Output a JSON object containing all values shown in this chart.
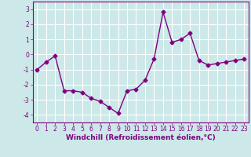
{
  "x": [
    0,
    1,
    2,
    3,
    4,
    5,
    6,
    7,
    8,
    9,
    10,
    11,
    12,
    13,
    14,
    15,
    16,
    17,
    18,
    19,
    20,
    21,
    22,
    23
  ],
  "y": [
    -1.0,
    -0.5,
    -0.1,
    -2.4,
    -2.4,
    -2.5,
    -2.9,
    -3.1,
    -3.5,
    -3.9,
    -2.4,
    -2.3,
    -1.7,
    -0.3,
    2.8,
    0.8,
    1.0,
    1.4,
    -0.4,
    -0.7,
    -0.6,
    -0.5,
    -0.4,
    -0.3
  ],
  "line_color": "#800080",
  "marker": "D",
  "marker_size": 2.5,
  "bg_color": "#cce8e8",
  "grid_color": "#ffffff",
  "xlabel": "Windchill (Refroidissement éolien,°C)",
  "ylim": [
    -4.5,
    3.5
  ],
  "xlim": [
    -0.5,
    23.5
  ],
  "yticks": [
    -4,
    -3,
    -2,
    -1,
    0,
    1,
    2,
    3
  ],
  "xticks": [
    0,
    1,
    2,
    3,
    4,
    5,
    6,
    7,
    8,
    9,
    10,
    11,
    12,
    13,
    14,
    15,
    16,
    17,
    18,
    19,
    20,
    21,
    22,
    23
  ],
  "tick_fontsize": 5.5,
  "xlabel_fontsize": 6.5,
  "line_width": 1.0
}
